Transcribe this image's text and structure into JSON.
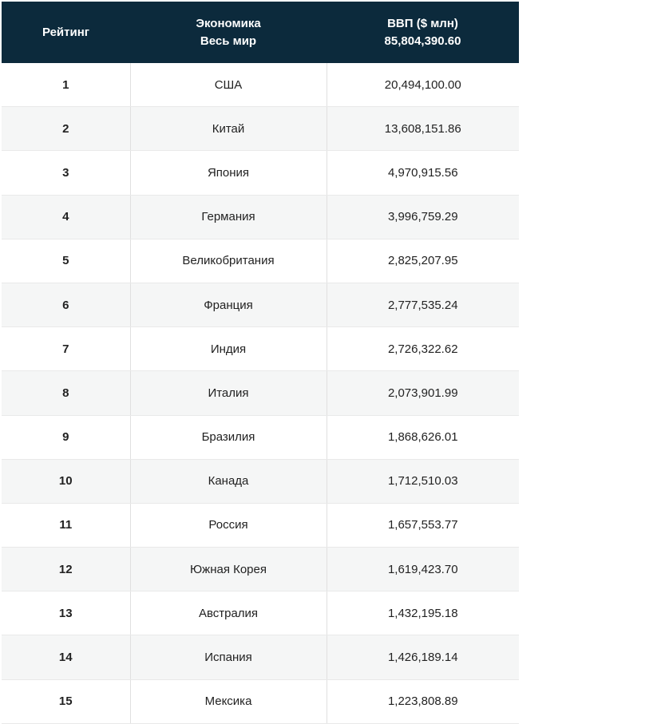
{
  "colors": {
    "header_bg": "#0c2a3c",
    "header_text": "#ffffff",
    "body_text": "#222222",
    "row_alt_bg": "#f5f6f6",
    "row_border": "#e9e9e9",
    "col_border": "#e0e0e0"
  },
  "table": {
    "header": {
      "rank": "Рейтинг",
      "economy": [
        "Экономика",
        "Весь мир"
      ],
      "gdp": [
        "ВВП ($ млн)",
        "85,804,390.60"
      ]
    },
    "rows": [
      {
        "rank": "1",
        "country": "США",
        "gdp": "20,494,100.00"
      },
      {
        "rank": "2",
        "country": "Китай",
        "gdp": "13,608,151.86"
      },
      {
        "rank": "3",
        "country": "Япония",
        "gdp": "4,970,915.56"
      },
      {
        "rank": "4",
        "country": "Германия",
        "gdp": "3,996,759.29"
      },
      {
        "rank": "5",
        "country": "Великобритания",
        "gdp": "2,825,207.95"
      },
      {
        "rank": "6",
        "country": "Франция",
        "gdp": "2,777,535.24"
      },
      {
        "rank": "7",
        "country": "Индия",
        "gdp": "2,726,322.62"
      },
      {
        "rank": "8",
        "country": "Италия",
        "gdp": "2,073,901.99"
      },
      {
        "rank": "9",
        "country": "Бразилия",
        "gdp": "1,868,626.01"
      },
      {
        "rank": "10",
        "country": "Канада",
        "gdp": "1,712,510.03"
      },
      {
        "rank": "11",
        "country": "Россия",
        "gdp": "1,657,553.77"
      },
      {
        "rank": "12",
        "country": "Южная Корея",
        "gdp": "1,619,423.70"
      },
      {
        "rank": "13",
        "country": "Австралия",
        "gdp": "1,432,195.18"
      },
      {
        "rank": "14",
        "country": "Испания",
        "gdp": "1,426,189.14"
      },
      {
        "rank": "15",
        "country": "Мексика",
        "gdp": "1,223,808.89"
      }
    ]
  },
  "chart_data": {
    "type": "table",
    "title": "",
    "columns": [
      "Рейтинг",
      "Экономика (Весь мир)",
      "ВВП ($ млн)"
    ],
    "world_total_gdp_musd": 85804390.6,
    "rows": [
      [
        1,
        "США",
        20494100.0
      ],
      [
        2,
        "Китай",
        13608151.86
      ],
      [
        3,
        "Япония",
        4970915.56
      ],
      [
        4,
        "Германия",
        3996759.29
      ],
      [
        5,
        "Великобритания",
        2825207.95
      ],
      [
        6,
        "Франция",
        2777535.24
      ],
      [
        7,
        "Индия",
        2726322.62
      ],
      [
        8,
        "Италия",
        2073901.99
      ],
      [
        9,
        "Бразилия",
        1868626.01
      ],
      [
        10,
        "Канада",
        1712510.03
      ],
      [
        11,
        "Россия",
        1657553.77
      ],
      [
        12,
        "Южная Корея",
        1619423.7
      ],
      [
        13,
        "Австралия",
        1432195.18
      ],
      [
        14,
        "Испания",
        1426189.14
      ],
      [
        15,
        "Мексика",
        1223808.89
      ]
    ]
  }
}
